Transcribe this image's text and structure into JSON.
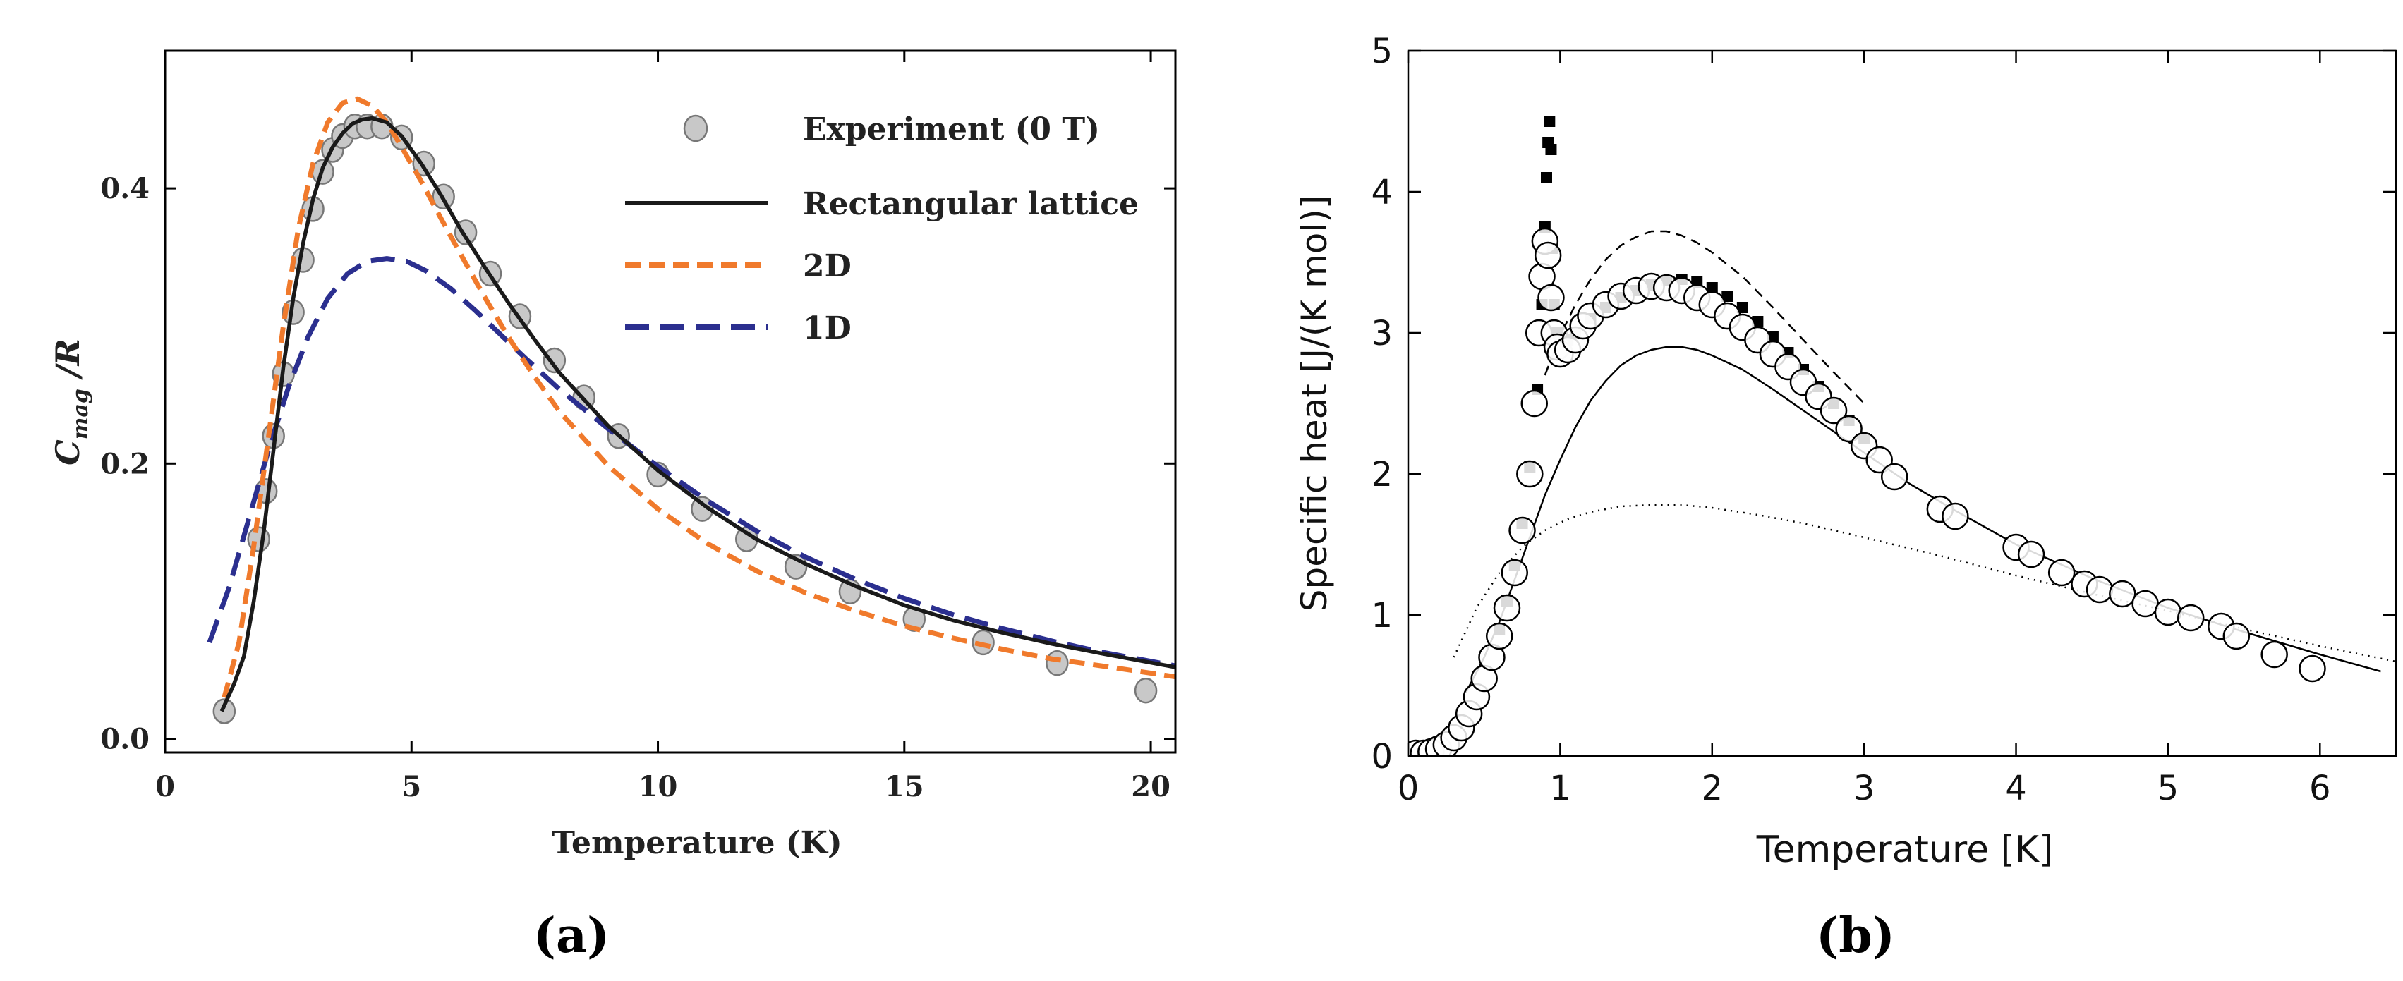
{
  "chart_data": [
    {
      "panel": "(a)",
      "type": "scatter",
      "title": "",
      "xlabel": "Temperature (K)",
      "ylabel_main": "C",
      "ylabel_sub": "mag",
      "ylabel_tail": " /R",
      "xlim": [
        0,
        20.5
      ],
      "ylim": [
        -0.01,
        0.5
      ],
      "xticks": [
        0,
        5,
        10,
        15,
        20
      ],
      "yticks": [
        0.0,
        0.2,
        0.4
      ],
      "xtick_labels": [
        "0",
        "5",
        "10",
        "15",
        "20"
      ],
      "ytick_labels": [
        "0.0",
        "0.2",
        "0.4"
      ],
      "legend_position": "top-right",
      "series": [
        {
          "name": "Experiment (0 T)",
          "kind": "markers",
          "color": "#c8c8c8",
          "edge": "#777777",
          "x": [
            1.2,
            1.9,
            2.05,
            2.2,
            2.4,
            2.6,
            2.8,
            3.0,
            3.2,
            3.4,
            3.6,
            3.85,
            4.1,
            4.4,
            4.8,
            5.25,
            5.65,
            6.1,
            6.6,
            7.2,
            7.9,
            8.5,
            9.2,
            10.0,
            10.9,
            11.8,
            12.8,
            13.9,
            15.2,
            16.6,
            18.1,
            19.9
          ],
          "y": [
            0.02,
            0.145,
            0.18,
            0.22,
            0.265,
            0.31,
            0.348,
            0.385,
            0.412,
            0.428,
            0.438,
            0.445,
            0.445,
            0.445,
            0.437,
            0.418,
            0.394,
            0.368,
            0.338,
            0.307,
            0.275,
            0.248,
            0.22,
            0.192,
            0.167,
            0.145,
            0.125,
            0.107,
            0.087,
            0.07,
            0.055,
            0.035
          ]
        },
        {
          "name": "Rectangular lattice",
          "kind": "line",
          "color": "#1a1a1a",
          "dash": "",
          "x": [
            1.15,
            1.4,
            1.6,
            1.8,
            2.0,
            2.2,
            2.4,
            2.6,
            2.8,
            3.0,
            3.2,
            3.4,
            3.6,
            3.8,
            4.0,
            4.2,
            4.5,
            4.8,
            5.2,
            5.6,
            6.0,
            6.5,
            7.0,
            7.5,
            8.0,
            9.0,
            10.0,
            11.0,
            12.0,
            13.0,
            14.0,
            15.0,
            16.0,
            17.0,
            18.0,
            19.0,
            20.5
          ],
          "y": [
            0.02,
            0.04,
            0.06,
            0.1,
            0.15,
            0.21,
            0.27,
            0.32,
            0.36,
            0.392,
            0.415,
            0.43,
            0.44,
            0.447,
            0.45,
            0.451,
            0.448,
            0.438,
            0.418,
            0.395,
            0.37,
            0.342,
            0.315,
            0.29,
            0.266,
            0.227,
            0.195,
            0.168,
            0.145,
            0.127,
            0.111,
            0.097,
            0.086,
            0.077,
            0.069,
            0.062,
            0.052
          ]
        },
        {
          "name": "2D",
          "kind": "line",
          "color": "#f07a2c",
          "dash": "22 12",
          "x": [
            1.2,
            1.5,
            1.8,
            2.1,
            2.4,
            2.7,
            3.0,
            3.3,
            3.6,
            3.9,
            4.2,
            4.5,
            4.8,
            5.2,
            5.6,
            6.0,
            6.5,
            7.0,
            7.5,
            8.0,
            9.0,
            10.0,
            11.0,
            12.0,
            13.0,
            14.0,
            15.0,
            16.0,
            17.0,
            18.0,
            19.0,
            20.5
          ],
          "y": [
            0.03,
            0.07,
            0.14,
            0.22,
            0.3,
            0.37,
            0.418,
            0.448,
            0.462,
            0.465,
            0.46,
            0.448,
            0.43,
            0.405,
            0.378,
            0.352,
            0.32,
            0.29,
            0.263,
            0.238,
            0.198,
            0.167,
            0.142,
            0.122,
            0.106,
            0.093,
            0.082,
            0.073,
            0.065,
            0.058,
            0.053,
            0.045
          ]
        },
        {
          "name": "1D",
          "kind": "line",
          "color": "#2b2f8f",
          "dash": "34 16",
          "x": [
            0.9,
            1.3,
            1.7,
            2.1,
            2.5,
            2.9,
            3.3,
            3.7,
            4.1,
            4.5,
            4.9,
            5.3,
            5.8,
            6.3,
            6.8,
            7.3,
            8.0,
            9.0,
            10.0,
            11.0,
            12.0,
            13.0,
            14.0,
            15.0,
            16.0,
            17.0,
            18.0,
            19.0,
            20.5
          ],
          "y": [
            0.07,
            0.11,
            0.16,
            0.21,
            0.255,
            0.292,
            0.32,
            0.338,
            0.347,
            0.349,
            0.347,
            0.34,
            0.327,
            0.311,
            0.294,
            0.277,
            0.254,
            0.225,
            0.198,
            0.173,
            0.151,
            0.132,
            0.116,
            0.102,
            0.09,
            0.08,
            0.071,
            0.063,
            0.053
          ]
        }
      ]
    },
    {
      "panel": "(b)",
      "type": "scatter",
      "title": "",
      "xlabel": "Temperature [K]",
      "ylabel": "Specific heat [J/(K mol)]",
      "xlim": [
        0,
        6.5
      ],
      "ylim": [
        0,
        5
      ],
      "xticks": [
        0,
        1,
        2,
        3,
        4,
        5,
        6
      ],
      "yticks": [
        0,
        1,
        2,
        3,
        4,
        5
      ],
      "xtick_labels": [
        "0",
        "1",
        "2",
        "3",
        "4",
        "5",
        "6"
      ],
      "ytick_labels": [
        "0",
        "1",
        "2",
        "3",
        "4",
        "5"
      ],
      "series": [
        {
          "name": "open circles",
          "kind": "markers-open-circle",
          "color": "#000000",
          "x": [
            0.05,
            0.1,
            0.15,
            0.2,
            0.25,
            0.3,
            0.35,
            0.4,
            0.45,
            0.5,
            0.55,
            0.6,
            0.65,
            0.7,
            0.75,
            0.8,
            0.83,
            0.86,
            0.88,
            0.9,
            0.92,
            0.94,
            0.96,
            0.98,
            1.0,
            1.05,
            1.1,
            1.15,
            1.2,
            1.3,
            1.4,
            1.5,
            1.6,
            1.7,
            1.8,
            1.9,
            2.0,
            2.1,
            2.2,
            2.3,
            2.4,
            2.5,
            2.6,
            2.7,
            2.8,
            2.9,
            3.0,
            3.1,
            3.2,
            3.5,
            3.6,
            4.0,
            4.1,
            4.3,
            4.45,
            4.55,
            4.7,
            4.85,
            5.0,
            5.15,
            5.35,
            5.45,
            5.7,
            5.95
          ],
          "y": [
            0.02,
            0.02,
            0.03,
            0.05,
            0.08,
            0.13,
            0.2,
            0.3,
            0.42,
            0.55,
            0.7,
            0.85,
            1.05,
            1.3,
            1.6,
            2.0,
            2.5,
            3.0,
            3.4,
            3.65,
            3.55,
            3.25,
            3.0,
            2.9,
            2.85,
            2.88,
            2.95,
            3.05,
            3.12,
            3.2,
            3.26,
            3.3,
            3.33,
            3.32,
            3.3,
            3.25,
            3.2,
            3.12,
            3.04,
            2.95,
            2.85,
            2.76,
            2.65,
            2.55,
            2.45,
            2.32,
            2.2,
            2.1,
            1.98,
            1.75,
            1.7,
            1.48,
            1.43,
            1.3,
            1.22,
            1.18,
            1.15,
            1.08,
            1.02,
            0.98,
            0.92,
            0.85,
            0.72,
            0.62
          ]
        },
        {
          "name": "filled squares",
          "kind": "markers-square",
          "color": "#000000",
          "x": [
            0.6,
            0.65,
            0.7,
            0.75,
            0.8,
            0.85,
            0.88,
            0.9,
            0.91,
            0.92,
            0.93,
            0.94,
            0.95,
            0.96,
            0.98,
            1.0,
            1.05,
            1.1,
            1.2,
            1.3,
            1.4,
            1.5,
            1.6,
            1.7,
            1.8,
            1.9,
            2.0,
            2.1,
            2.2,
            2.3,
            2.4,
            2.5,
            2.6,
            2.7,
            2.8,
            2.9,
            3.0
          ],
          "y": [
            0.9,
            1.1,
            1.35,
            1.65,
            2.05,
            2.6,
            3.2,
            3.75,
            4.1,
            4.35,
            4.5,
            4.3,
            3.6,
            3.2,
            3.0,
            2.92,
            2.95,
            3.0,
            3.1,
            3.18,
            3.25,
            3.3,
            3.34,
            3.37,
            3.38,
            3.36,
            3.32,
            3.26,
            3.18,
            3.08,
            2.97,
            2.86,
            2.74,
            2.62,
            2.5,
            2.38,
            2.25
          ]
        },
        {
          "name": "solid theory",
          "kind": "line",
          "color": "#000000",
          "dash": "",
          "width": 2.5,
          "x": [
            0.38,
            0.5,
            0.6,
            0.7,
            0.8,
            0.9,
            1.0,
            1.1,
            1.2,
            1.3,
            1.4,
            1.5,
            1.6,
            1.7,
            1.8,
            1.9,
            2.0,
            2.2,
            2.4,
            2.6,
            2.8,
            3.0,
            3.3,
            3.6,
            4.0,
            4.5,
            5.0,
            5.5,
            6.0,
            6.4
          ],
          "y": [
            0.45,
            0.7,
            0.95,
            1.25,
            1.55,
            1.85,
            2.1,
            2.33,
            2.52,
            2.66,
            2.77,
            2.84,
            2.88,
            2.9,
            2.9,
            2.88,
            2.84,
            2.74,
            2.6,
            2.45,
            2.3,
            2.15,
            1.93,
            1.74,
            1.5,
            1.26,
            1.05,
            0.88,
            0.72,
            0.6
          ]
        },
        {
          "name": "dashed theory",
          "kind": "line",
          "color": "#000000",
          "dash": "14 9",
          "width": 2.5,
          "x": [
            0.9,
            1.0,
            1.1,
            1.2,
            1.3,
            1.4,
            1.5,
            1.6,
            1.7,
            1.8,
            1.9,
            2.0,
            2.2,
            2.4,
            2.6,
            2.8,
            3.0
          ],
          "y": [
            2.7,
            2.98,
            3.2,
            3.38,
            3.52,
            3.62,
            3.68,
            3.72,
            3.72,
            3.69,
            3.64,
            3.57,
            3.4,
            3.18,
            2.95,
            2.72,
            2.5
          ]
        },
        {
          "name": "dotted theory",
          "kind": "line",
          "color": "#000000",
          "dash": "2 7",
          "width": 2.5,
          "x": [
            0.3,
            0.45,
            0.6,
            0.75,
            0.9,
            1.05,
            1.2,
            1.4,
            1.6,
            1.8,
            2.0,
            2.3,
            2.6,
            3.0,
            3.5,
            4.0,
            4.5,
            5.0,
            5.5,
            6.0,
            6.5
          ],
          "y": [
            0.7,
            1.05,
            1.3,
            1.48,
            1.6,
            1.68,
            1.73,
            1.77,
            1.78,
            1.78,
            1.76,
            1.71,
            1.65,
            1.55,
            1.42,
            1.28,
            1.15,
            1.03,
            0.9,
            0.78,
            0.67
          ]
        }
      ]
    }
  ],
  "captions": {
    "a": "(a)",
    "b": "(b)"
  }
}
